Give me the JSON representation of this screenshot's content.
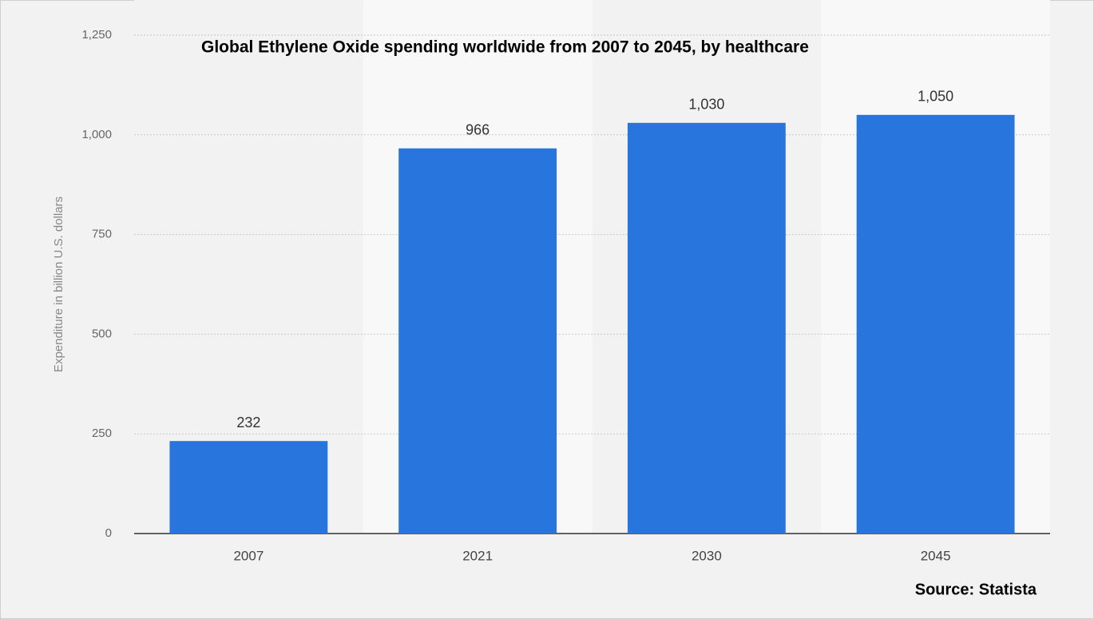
{
  "chart_data": {
    "type": "bar",
    "title": "Global Ethylene Oxide spending worldwide from 2007 to 2045, by healthcare",
    "y_label": "Expenditure in billion U.S. dollars",
    "source": "Source: Statista",
    "categories": [
      "2007",
      "2021",
      "2030",
      "2045"
    ],
    "values": [
      232,
      966,
      1030,
      1050
    ],
    "value_labels": [
      "232",
      "966",
      "1,030",
      "1,050"
    ],
    "color": "#2875dd",
    "ylim": [
      0,
      1250
    ],
    "yticks": [
      0,
      250,
      500,
      750,
      {
        "value": 1000,
        "label": "1,000"
      },
      {
        "value": 1250,
        "label": "1,250"
      }
    ],
    "grid": true
  }
}
